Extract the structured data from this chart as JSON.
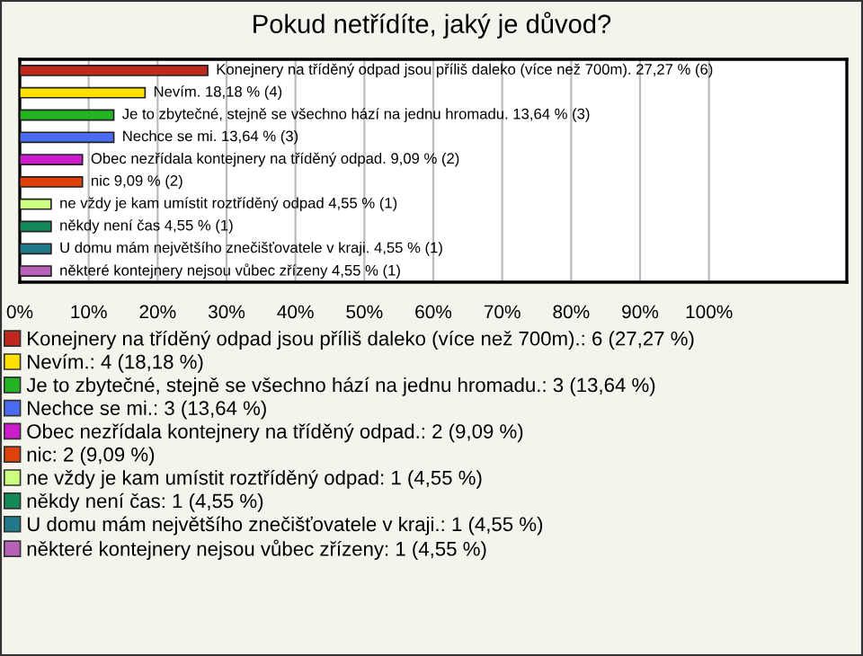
{
  "chart_data": {
    "type": "bar",
    "orientation": "horizontal",
    "title": "Pokud netřídíte, jaký je důvod?",
    "categories": [
      null,
      null,
      null,
      null,
      null,
      null,
      null,
      null,
      null,
      null
    ],
    "xlim": [
      0,
      120
    ],
    "xticks": [
      {
        "value": 0,
        "label": "0%"
      },
      {
        "value": 10,
        "label": "10%"
      },
      {
        "value": 20,
        "label": "20%"
      },
      {
        "value": 30,
        "label": "30%"
      },
      {
        "value": 40,
        "label": "40%"
      },
      {
        "value": 50,
        "label": "50%"
      },
      {
        "value": 60,
        "label": "60%"
      },
      {
        "value": 70,
        "label": "70%"
      },
      {
        "value": 80,
        "label": "80%"
      },
      {
        "value": 90,
        "label": "90%"
      },
      {
        "value": 100,
        "label": "100%"
      }
    ],
    "grid": "x",
    "legend": "bottom",
    "tick_labels": "x",
    "series": [
      {
        "name": "Konejnery na tříděný odpad jsou příliš daleko (více než 700m).: 6 (27,27 %)",
        "color": "#c0281e",
        "values": [
          27.27,
          null,
          null,
          null,
          null,
          null,
          null,
          null,
          null,
          null
        ],
        "value_labels": [
          "Konejnery na tříděný odpad jsou příliš daleko (více než 700m). 27,27 % (6)",
          null,
          null,
          null,
          null,
          null,
          null,
          null,
          null,
          null
        ]
      },
      {
        "name": "Nevím.: 4 (18,18 %)",
        "color": "#ffe000",
        "values": [
          null,
          18.18,
          null,
          null,
          null,
          null,
          null,
          null,
          null,
          null
        ],
        "value_labels": [
          null,
          "Nevím. 18,18 % (4)",
          null,
          null,
          null,
          null,
          null,
          null,
          null,
          null
        ]
      },
      {
        "name": "Je to zbytečné, stejně se všechno hází na jednu hromadu.: 3 (13,64 %)",
        "color": "#22b422",
        "values": [
          null,
          null,
          13.64,
          null,
          null,
          null,
          null,
          null,
          null,
          null
        ],
        "value_labels": [
          null,
          null,
          "Je to zbytečné, stejně se všechno hází na jednu hromadu. 13,64 % (3)",
          null,
          null,
          null,
          null,
          null,
          null,
          null
        ]
      },
      {
        "name": "Nechce se mi.: 3 (13,64 %)",
        "color": "#4a6cf0",
        "values": [
          null,
          null,
          null,
          13.64,
          null,
          null,
          null,
          null,
          null,
          null
        ],
        "value_labels": [
          null,
          null,
          null,
          "Nechce se mi. 13,64 % (3)",
          null,
          null,
          null,
          null,
          null,
          null
        ]
      },
      {
        "name": "Obec nezřídala kontejnery na tříděný odpad.: 2 (9,09 %)",
        "color": "#cc1ccc",
        "values": [
          null,
          null,
          null,
          null,
          9.09,
          null,
          null,
          null,
          null,
          null
        ],
        "value_labels": [
          null,
          null,
          null,
          null,
          "Obec nezřídala kontejnery na tříděný odpad. 9,09 % (2)",
          null,
          null,
          null,
          null,
          null
        ]
      },
      {
        "name": "nic: 2 (9,09 %)",
        "color": "#e0400a",
        "values": [
          null,
          null,
          null,
          null,
          null,
          9.09,
          null,
          null,
          null,
          null
        ],
        "value_labels": [
          null,
          null,
          null,
          null,
          null,
          "nic 9,09 % (2)",
          null,
          null,
          null,
          null
        ]
      },
      {
        "name": "ne vždy je kam umístit roztříděný odpad: 1 (4,55 %)",
        "color": "#ccff80",
        "values": [
          null,
          null,
          null,
          null,
          null,
          null,
          4.55,
          null,
          null,
          null
        ],
        "value_labels": [
          null,
          null,
          null,
          null,
          null,
          null,
          "ne vždy je kam umístit roztříděný odpad 4,55 % (1)",
          null,
          null,
          null
        ]
      },
      {
        "name": "někdy není čas: 1 (4,55 %)",
        "color": "#128a58",
        "values": [
          null,
          null,
          null,
          null,
          null,
          null,
          null,
          4.55,
          null,
          null
        ],
        "value_labels": [
          null,
          null,
          null,
          null,
          null,
          null,
          null,
          "někdy není čas 4,55 % (1)",
          null,
          null
        ]
      },
      {
        "name": "U domu mám největšího znečišťovatele v kraji.: 1 (4,55 %)",
        "color": "#207888",
        "values": [
          null,
          null,
          null,
          null,
          null,
          null,
          null,
          null,
          4.55,
          null
        ],
        "value_labels": [
          null,
          null,
          null,
          null,
          null,
          null,
          null,
          null,
          "U domu mám největšího znečišťovatele v kraji. 4,55 % (1)",
          null
        ]
      },
      {
        "name": "některé kontejnery nejsou vůbec zřízeny: 1 (4,55 %)",
        "color": "#b860b8",
        "values": [
          null,
          null,
          null,
          null,
          null,
          null,
          null,
          null,
          null,
          4.55
        ],
        "value_labels": [
          null,
          null,
          null,
          null,
          null,
          null,
          null,
          null,
          null,
          "některé kontejnery nejsou vůbec zřízeny 4,55 % (1)"
        ]
      }
    ]
  }
}
